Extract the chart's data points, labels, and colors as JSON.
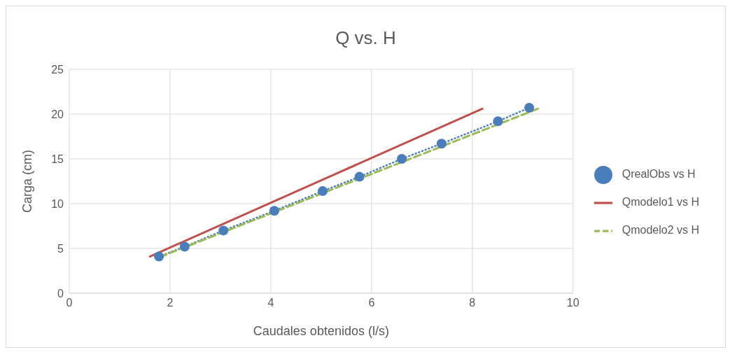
{
  "chart_data": {
    "type": "scatter",
    "title": "Q vs. H",
    "xlabel": "Caudales obtenidos (l/s)",
    "ylabel": "Carga (cm)",
    "xlim": [
      0,
      10
    ],
    "xticks": [
      0,
      2,
      4,
      6,
      8,
      10
    ],
    "ylim": [
      0,
      25
    ],
    "yticks": [
      0,
      5,
      10,
      15,
      20,
      25
    ],
    "grid": true,
    "legend": "right",
    "series": [
      {
        "name": "QrealObs vs H",
        "marker": "circle",
        "color": "#4a7ebb",
        "x": [
          1.78,
          2.29,
          3.06,
          4.07,
          5.03,
          5.76,
          6.6,
          7.39,
          8.51,
          9.13
        ],
        "values": [
          4.1,
          5.2,
          7,
          9.2,
          11.4,
          13,
          15,
          16.7,
          19.2,
          20.7
        ]
      },
      {
        "type": "line",
        "line_style": "dotted",
        "marker": "none",
        "color": "#4a7ebb",
        "x": [
          1.78,
          2.29,
          3.06,
          4.07,
          5.03,
          5.76,
          6.6,
          7.39,
          8.51,
          9.13
        ],
        "values": [
          4.1,
          5.2,
          7,
          9.2,
          11.4,
          13,
          15,
          16.7,
          19.2,
          20.7
        ]
      },
      {
        "name": "Qmodelo1 vs H",
        "type": "line",
        "line_style": "solid",
        "marker": "none",
        "color": "#c0504d",
        "x": [
          1.6,
          8.2
        ],
        "values": [
          4.1,
          20.6
        ]
      },
      {
        "name": "Qmodelo2 vs H",
        "type": "line",
        "line_style": "dashed",
        "marker": "none",
        "color": "#9bbb59",
        "x": [
          1.8,
          9.35
        ],
        "values": [
          4.05,
          20.7
        ]
      }
    ]
  }
}
